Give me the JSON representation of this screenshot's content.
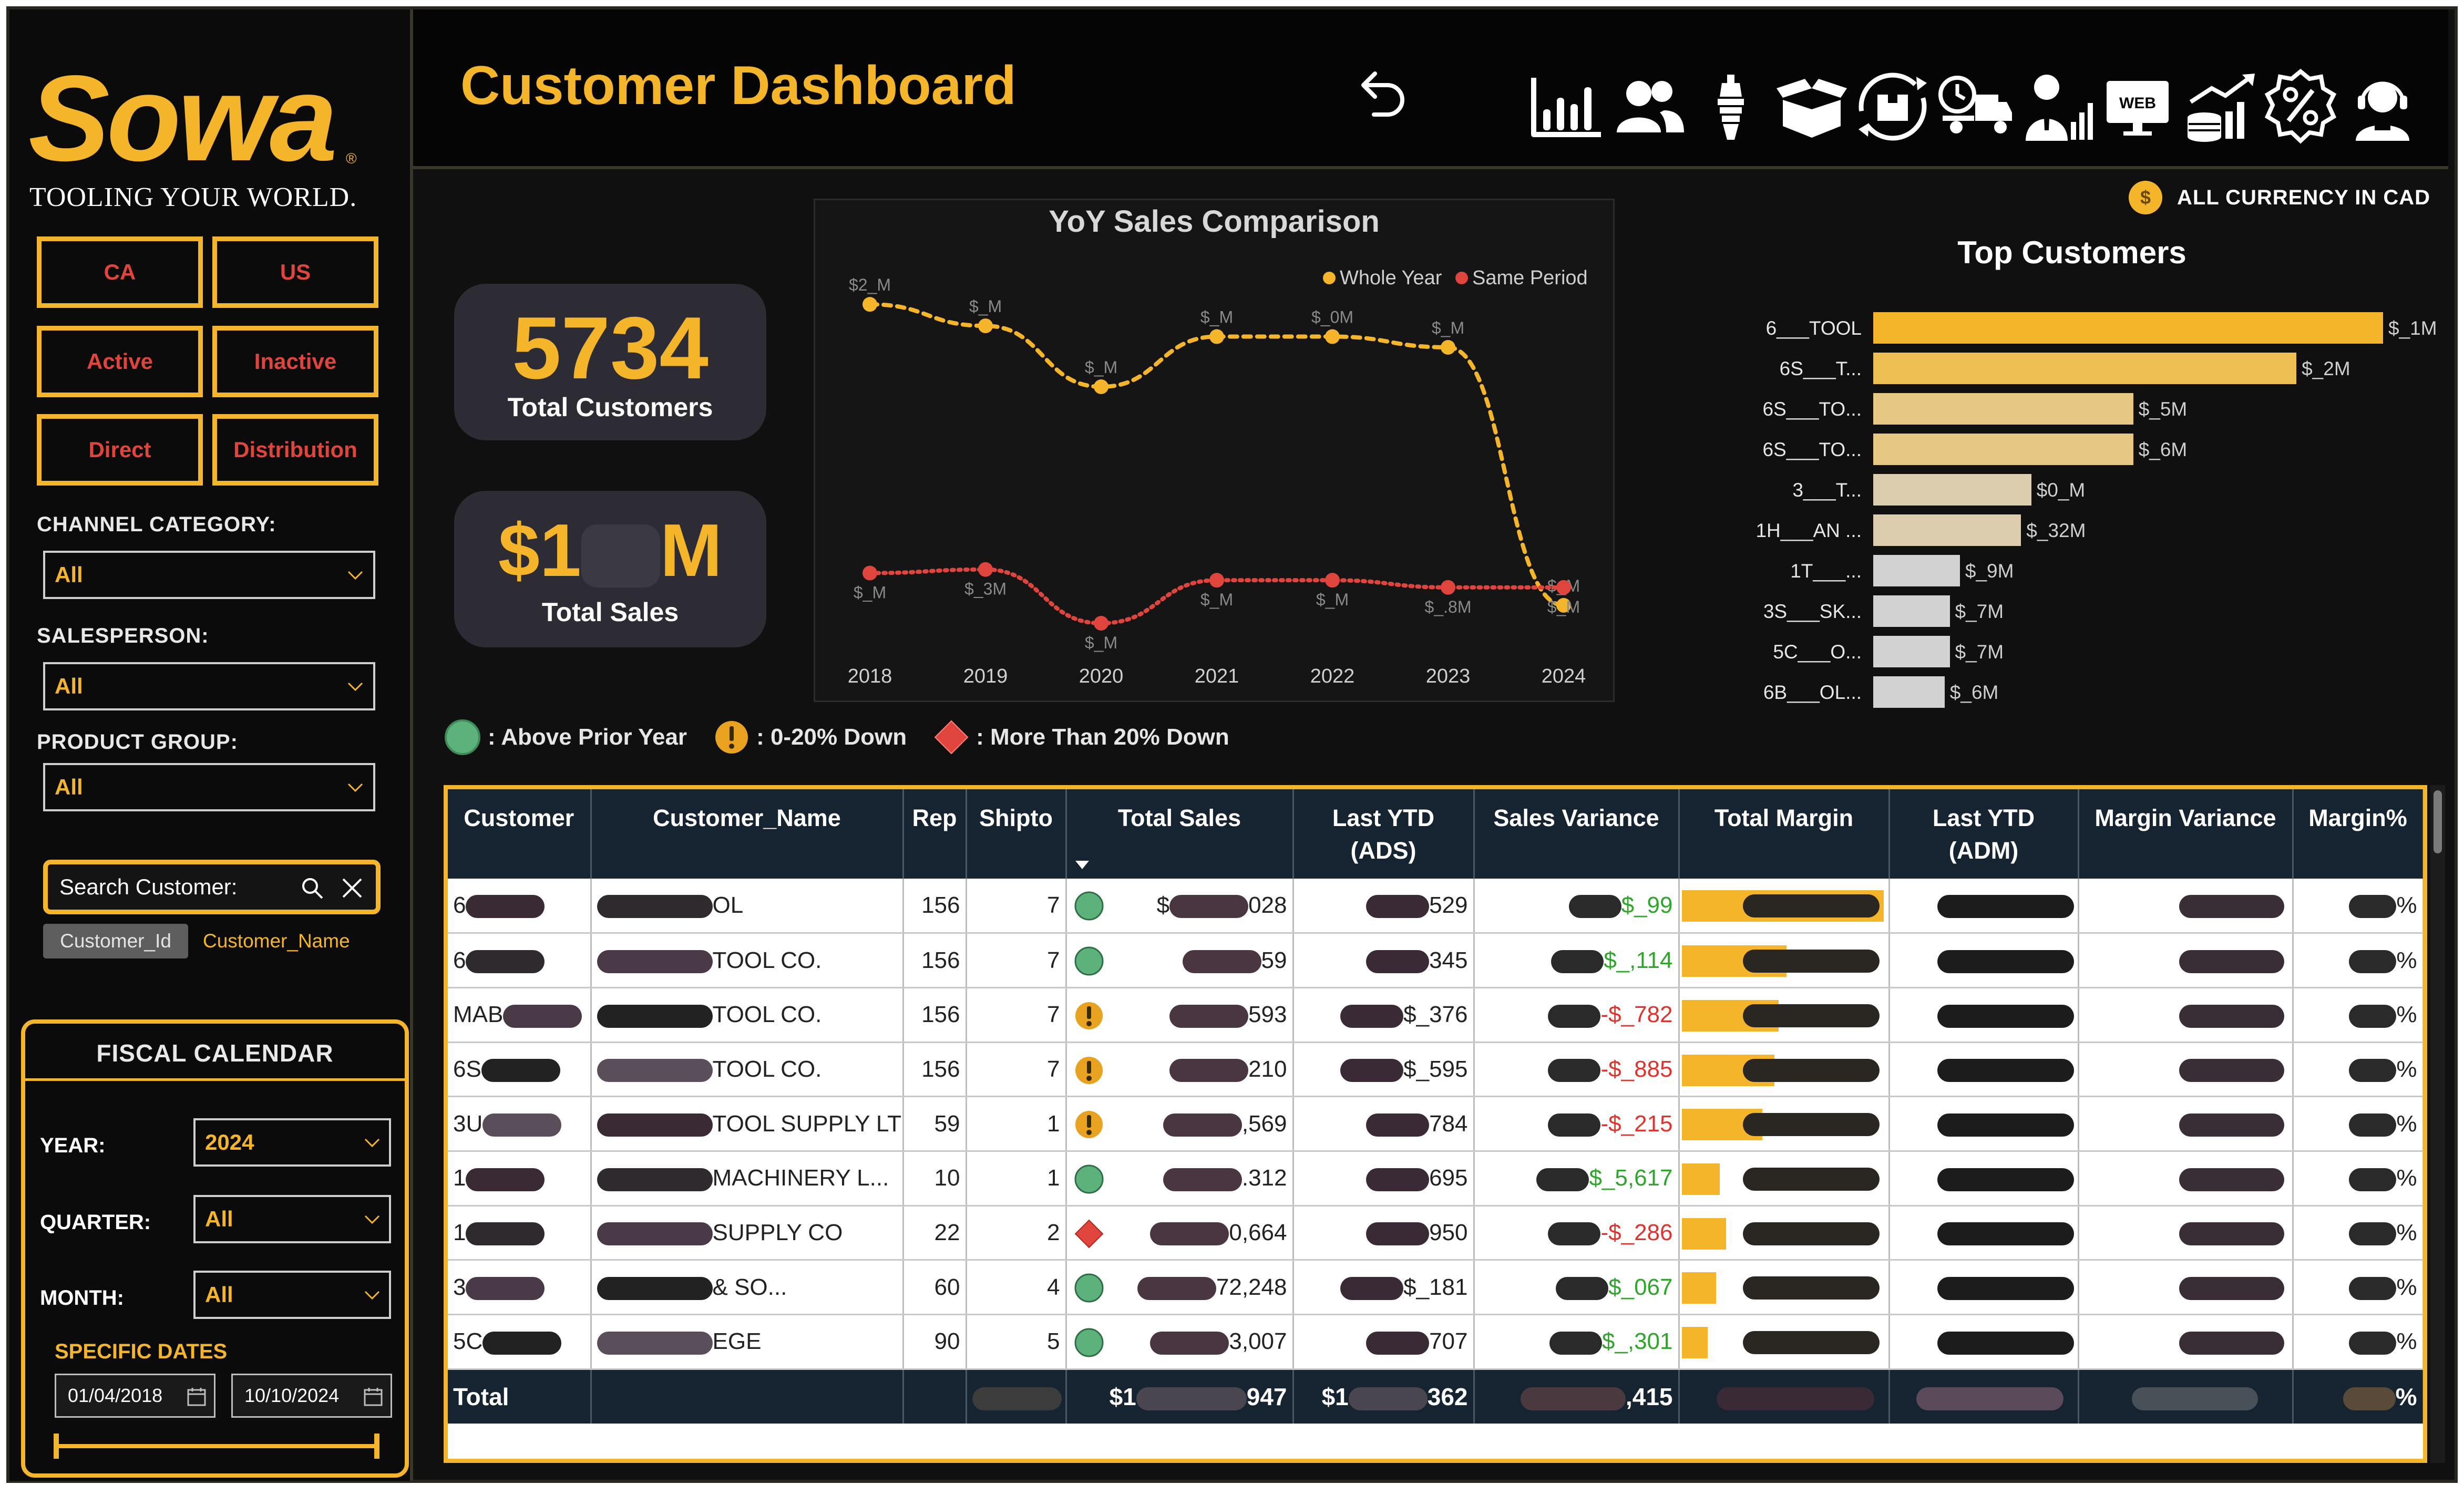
{
  "brand": {
    "logo": "Sowa",
    "tagline": "TOOLING YOUR WORLD."
  },
  "filters": {
    "buttons": [
      "CA",
      "US",
      "Active",
      "Inactive",
      "Direct",
      "Distribution"
    ],
    "channel": {
      "label": "CHANNEL CATEGORY:",
      "value": "All"
    },
    "salesperson": {
      "label": "SALESPERSON:",
      "value": "All"
    },
    "product_group": {
      "label": "PRODUCT GROUP:",
      "value": "All"
    },
    "search_placeholder": "Search Customer:",
    "search_modes": [
      "Customer_Id",
      "Customer_Name"
    ]
  },
  "fiscal": {
    "title": "FISCAL CALENDAR",
    "year": {
      "label": "YEAR:",
      "value": "2024"
    },
    "quarter": {
      "label": "QUARTER:",
      "value": "All"
    },
    "month": {
      "label": "MONTH:",
      "value": "All"
    },
    "specific_label": "SPECIFIC DATES",
    "start_date": "01/04/2018",
    "end_date": "10/10/2024"
  },
  "header": {
    "title": "Customer Dashboard",
    "nav_icons": [
      "sales-chart-icon",
      "customers-icon",
      "product-icon",
      "open-box-icon",
      "inventory-cycle-icon",
      "delivery-truck-icon",
      "salesperson-icon",
      "web-icon",
      "growth-coins-icon",
      "discount-icon",
      "support-agent-icon"
    ],
    "web_label": "WEB"
  },
  "kpis": {
    "customers": {
      "value": "5734",
      "label": "Total Customers"
    },
    "sales": {
      "prefix": "$1",
      "suffix": "M",
      "label": "Total Sales"
    }
  },
  "currency_note": "ALL CURRENCY IN CAD",
  "chart_data": [
    {
      "type": "line",
      "title": "YoY Sales Comparison",
      "x": [
        "2018",
        "2019",
        "2020",
        "2021",
        "2022",
        "2023",
        "2024"
      ],
      "series": [
        {
          "name": "Whole Year",
          "color": "#f5b52a",
          "values": [
            100,
            94,
            77,
            91,
            91,
            88,
            16
          ]
        },
        {
          "name": "Same Period",
          "color": "#e0453d",
          "values": [
            25,
            26,
            11,
            23,
            23,
            21,
            21
          ]
        }
      ],
      "labels": {
        "whole": [
          "$2_M",
          "$_M",
          "$_M",
          "$_M",
          "$_0M",
          "$_M",
          "$_M"
        ],
        "same": [
          "$_M",
          "$_3M",
          "$_M",
          "$_M",
          "$_M",
          "$_.8M",
          "$_M"
        ]
      },
      "ylim": [
        0,
        110
      ]
    },
    {
      "type": "bar",
      "title": "Top Customers",
      "categories": [
        "6___TOOL",
        "6S___T...",
        "6S___TO...",
        "6S___TO...",
        "3___T...",
        "1H___AN ...",
        "1T___...",
        "3S___SK...",
        "5C___O...",
        "6B___OL..."
      ],
      "values": [
        100,
        83,
        51,
        51,
        31,
        29,
        17,
        15,
        15,
        14
      ],
      "value_labels": [
        "$_1M",
        "$_2M",
        "$_5M",
        "$_6M",
        "$0_M",
        "$_32M",
        "$_9M",
        "$_7M",
        "$_7M",
        "$_6M"
      ],
      "colors": [
        "#f5b52a",
        "#eebf52",
        "#e6c784",
        "#e6c784",
        "#dccdaf",
        "#dccdaf",
        "#d2d2d2",
        "#d2d2d2",
        "#d2d2d2",
        "#d2d2d2"
      ]
    }
  ],
  "legend": {
    "above": ": Above Prior Year",
    "down_small": ": 0-20% Down",
    "down_big": ": More Than 20% Down"
  },
  "table": {
    "columns": [
      "Customer",
      "Customer_Name",
      "Rep",
      "Shipto",
      "Total Sales",
      "Last YTD\n(ADS)",
      "Sales Variance",
      "Total Margin",
      "Last YTD\n(ADM)",
      "Margin Variance",
      "Margin%"
    ],
    "rows": [
      {
        "customer": "6",
        "name": "OL",
        "rep": "156",
        "shipto": "7",
        "status": "green",
        "sales_a": "$",
        "sales_b": "028",
        "ytd": "529",
        "var": "$_99",
        "var_sign": "pos",
        "margin_bar": 100
      },
      {
        "customer": "6",
        "name": "TOOL CO.",
        "rep": "156",
        "shipto": "7",
        "status": "green",
        "sales_a": "",
        "sales_b": "59",
        "ytd": "345",
        "var": "$_,114",
        "var_sign": "pos",
        "margin_bar": 52
      },
      {
        "customer": "MAB",
        "name": "TOOL CO.",
        "rep": "156",
        "shipto": "7",
        "status": "yellow",
        "sales_a": "",
        "sales_b": "593",
        "ytd": "$_376",
        "var": "-$_782",
        "var_sign": "neg",
        "margin_bar": 48
      },
      {
        "customer": "6S",
        "name": "TOOL CO.",
        "rep": "156",
        "shipto": "7",
        "status": "yellow",
        "sales_a": "",
        "sales_b": "210",
        "ytd": "$_595",
        "var": "-$_885",
        "var_sign": "neg",
        "margin_bar": 46
      },
      {
        "customer": "3U",
        "name": "TOOL SUPPLY LTD",
        "rep": "59",
        "shipto": "1",
        "status": "yellow",
        "sales_a": "",
        "sales_b": ",569",
        "ytd": "784",
        "var": "-$_215",
        "var_sign": "neg",
        "margin_bar": 40
      },
      {
        "customer": "1",
        "name": "MACHINERY L...",
        "rep": "10",
        "shipto": "1",
        "status": "green",
        "sales_a": "",
        "sales_b": ".312",
        "ytd": "695",
        "var": "$_5,617",
        "var_sign": "pos",
        "margin_bar": 19
      },
      {
        "customer": "1",
        "name": "SUPPLY CO",
        "rep": "22",
        "shipto": "2",
        "status": "red",
        "sales_a": "",
        "sales_b": "0,664",
        "ytd": "950",
        "var": "-$_286",
        "var_sign": "neg",
        "margin_bar": 22
      },
      {
        "customer": "3",
        "name": "& SO...",
        "rep": "60",
        "shipto": "4",
        "status": "green",
        "sales_a": "",
        "sales_b": "72,248",
        "ytd": "$_181",
        "var": "$_067",
        "var_sign": "pos",
        "margin_bar": 17
      },
      {
        "customer": "5C",
        "name": "EGE",
        "rep": "90",
        "shipto": "5",
        "status": "green",
        "sales_a": "",
        "sales_b": "3,007",
        "ytd": "707",
        "var": "$_,301",
        "var_sign": "pos",
        "margin_bar": 13
      }
    ],
    "total": {
      "label": "Total",
      "sales_prefix": "$1",
      "sales_suffix": "947",
      "ytd_prefix": "$1",
      "ytd_suffix": "362",
      "var": ",415",
      "margin_pct": "%"
    }
  },
  "colors": {
    "accent": "#f5b52a",
    "red": "#e0453d",
    "green": "#5cb27a",
    "header_bg": "#152430"
  }
}
